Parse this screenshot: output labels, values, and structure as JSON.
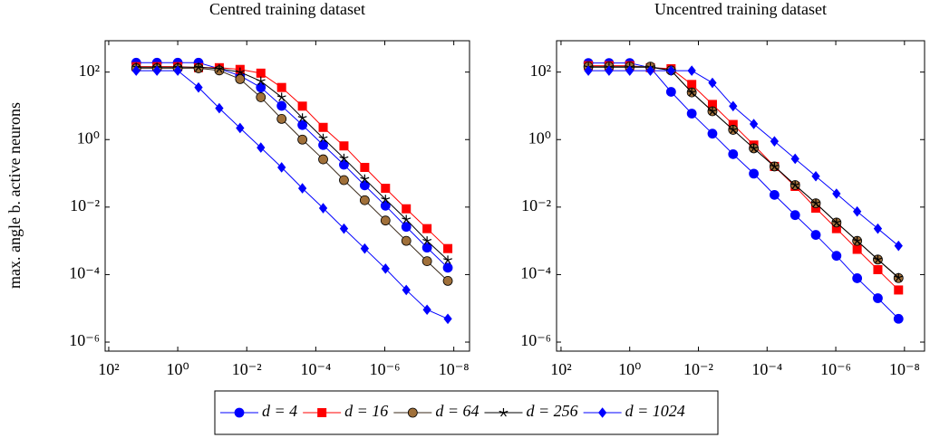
{
  "chart_data": [
    {
      "type": "line",
      "title": "Centred training dataset",
      "y_label": "max. angle b. active neurons",
      "x": [
        16,
        4,
        1,
        0.25,
        0.0625,
        0.015625,
        0.00390625,
        0.0009765625,
        0.000244140625,
        6.103515625e-05,
        1.52587890625e-05,
        3.814697265625e-06,
        9.5367431640625e-07,
        2.384185791015625e-07,
        5.960464477539063e-08,
        1.4901161193847656e-08
      ],
      "x_log": true,
      "y_log": true,
      "xlim": [
        127,
        3.5e-09
      ],
      "ylim": [
        5.4e-07,
        850
      ],
      "xticks": [
        {
          "value": 100,
          "label": "10²"
        },
        {
          "value": 1,
          "label": "10⁰"
        },
        {
          "value": 0.01,
          "label": "10⁻²"
        },
        {
          "value": 0.0001,
          "label": "10⁻⁴"
        },
        {
          "value": 1e-06,
          "label": "10⁻⁶"
        },
        {
          "value": 1e-08,
          "label": "10⁻⁸"
        }
      ],
      "yticks": [
        {
          "value": 1e-06,
          "label": "10⁻⁶"
        },
        {
          "value": 0.0001,
          "label": "10⁻⁴"
        },
        {
          "value": 0.01,
          "label": "10⁻²"
        },
        {
          "value": 1,
          "label": "10⁰"
        },
        {
          "value": 100,
          "label": "10²"
        }
      ],
      "legend": "bottom",
      "series": [
        {
          "name": "d = 4",
          "color": "#0000ff",
          "marker": "circle",
          "values": [
            190,
            190,
            190,
            190,
            126,
            78,
            35,
            10,
            2.7,
            0.69,
            0.18,
            0.044,
            0.011,
            0.0026,
            0.00063,
            0.00016
          ]
        },
        {
          "name": "d = 16",
          "color": "#ff0000",
          "marker": "square",
          "values": [
            145,
            145,
            145,
            135,
            135,
            120,
            93,
            35,
            9.8,
            2.3,
            0.65,
            0.15,
            0.036,
            0.0089,
            0.0023,
            0.00059
          ]
        },
        {
          "name": "d = 64",
          "color": "#a0703a",
          "marker": "circle",
          "values": [
            130,
            130,
            130,
            130,
            112,
            62,
            18,
            4.1,
            1.0,
            0.26,
            0.063,
            0.016,
            0.004,
            0.001,
            0.00025,
            6.5e-05
          ]
        },
        {
          "name": "d = 256",
          "color": "#000000",
          "marker": "star",
          "values": [
            140,
            140,
            140,
            140,
            126,
            100,
            54,
            18,
            4.4,
            1.1,
            0.28,
            0.068,
            0.017,
            0.0043,
            0.001,
            0.00027
          ]
        },
        {
          "name": "d = 1024",
          "color": "#0000ff",
          "marker": "diamond",
          "values": [
            110,
            110,
            110,
            35,
            8.5,
            2.2,
            0.58,
            0.15,
            0.036,
            0.0093,
            0.0023,
            0.00059,
            0.00015,
            3.5e-05,
            9.1e-06,
            4.9e-06
          ]
        }
      ]
    },
    {
      "type": "line",
      "title": "Uncentred training dataset",
      "x": [
        16,
        4,
        1,
        0.25,
        0.0625,
        0.015625,
        0.00390625,
        0.0009765625,
        0.000244140625,
        6.103515625e-05,
        1.52587890625e-05,
        3.814697265625e-06,
        9.5367431640625e-07,
        2.384185791015625e-07,
        5.960464477539063e-08,
        1.4901161193847656e-08
      ],
      "x_log": true,
      "y_log": true,
      "xlim": [
        135,
        2.6e-09
      ],
      "ylim": [
        5.4e-07,
        850
      ],
      "xticks": [
        {
          "value": 100,
          "label": "10²"
        },
        {
          "value": 1,
          "label": "10⁰"
        },
        {
          "value": 0.01,
          "label": "10⁻²"
        },
        {
          "value": 0.0001,
          "label": "10⁻⁴"
        },
        {
          "value": 1e-06,
          "label": "10⁻⁶"
        },
        {
          "value": 1e-08,
          "label": "10⁻⁸"
        }
      ],
      "yticks": [
        {
          "value": 1e-06,
          "label": "10⁻⁶"
        },
        {
          "value": 0.0001,
          "label": "10⁻⁴"
        },
        {
          "value": 0.01,
          "label": "10⁻²"
        },
        {
          "value": 1,
          "label": "10⁰"
        },
        {
          "value": 100,
          "label": "10²"
        }
      ],
      "series": [
        {
          "color": "#0000ff",
          "marker": "circle",
          "values": [
            186,
            186,
            186,
            135,
            26,
            5.9,
            1.5,
            0.37,
            0.098,
            0.023,
            0.0058,
            0.0015,
            0.00036,
            7.8e-05,
            2e-05,
            4.9e-06
          ]
        },
        {
          "color": "#ff0000",
          "marker": "square",
          "values": [
            155,
            155,
            155,
            135,
            126,
            43,
            11,
            2.8,
            0.69,
            0.16,
            0.041,
            0.0093,
            0.0023,
            0.00056,
            0.00014,
            3.5e-05
          ]
        },
        {
          "color": "#a0703a",
          "marker": "circle",
          "values": [
            145,
            145,
            145,
            145,
            112,
            25,
            6.9,
            1.95,
            0.55,
            0.16,
            0.045,
            0.013,
            0.0035,
            0.001,
            0.00028,
            7.9e-05
          ]
        },
        {
          "color": "#000000",
          "marker": "star",
          "values": [
            140,
            140,
            140,
            140,
            112,
            25,
            6.9,
            1.95,
            0.55,
            0.16,
            0.045,
            0.013,
            0.0035,
            0.001,
            0.00028,
            8.2e-05
          ]
        },
        {
          "color": "#0000ff",
          "marker": "diamond",
          "values": [
            110,
            110,
            110,
            110,
            110,
            110,
            48,
            9.8,
            2.9,
            0.89,
            0.27,
            0.082,
            0.025,
            0.0074,
            0.0023,
            0.00071
          ]
        }
      ]
    }
  ]
}
